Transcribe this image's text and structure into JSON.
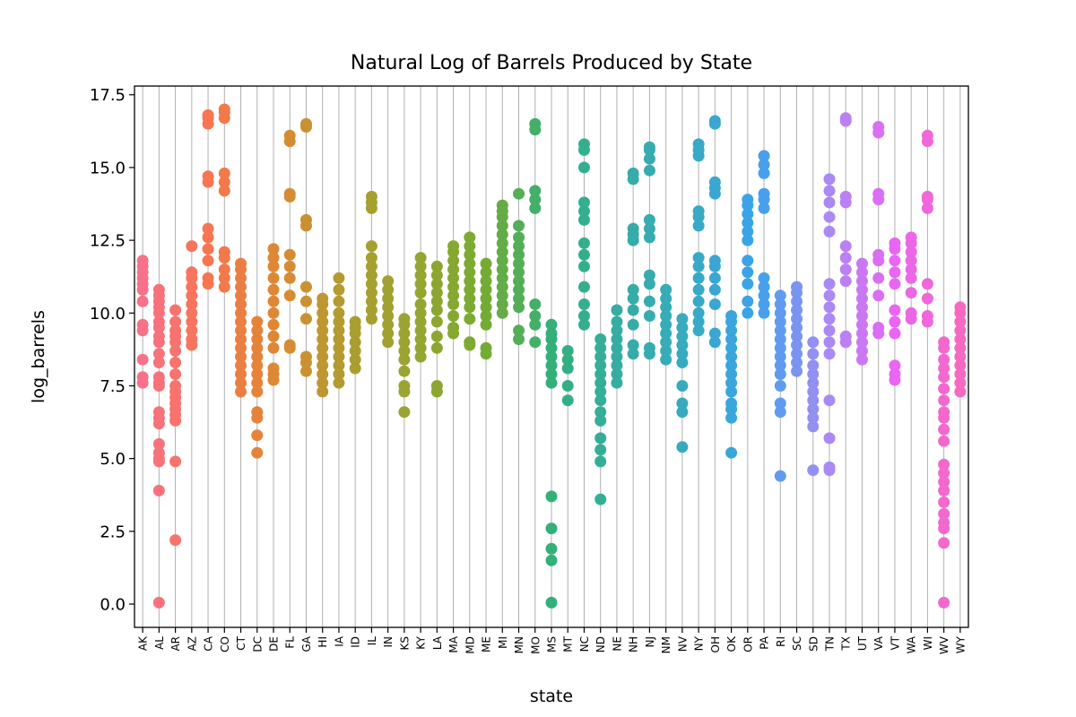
{
  "chart_data": {
    "type": "scatter",
    "subtype": "strip",
    "title": "Natural Log of Barrels Produced by State",
    "xlabel": "state",
    "ylabel": "log_barrels",
    "ylim": [
      -0.8,
      17.8
    ],
    "yticks": [
      "0.0",
      "2.5",
      "5.0",
      "7.5",
      "10.0",
      "12.5",
      "15.0",
      "17.5"
    ],
    "grid": "vertical lines at each category",
    "legend": "none",
    "categories": [
      "AK",
      "AL",
      "AR",
      "AZ",
      "CA",
      "CO",
      "CT",
      "DC",
      "DE",
      "FL",
      "GA",
      "HI",
      "IA",
      "ID",
      "IL",
      "IN",
      "KS",
      "KY",
      "LA",
      "MA",
      "MD",
      "ME",
      "MI",
      "MN",
      "MO",
      "MS",
      "MT",
      "NC",
      "ND",
      "NE",
      "NH",
      "NJ",
      "NM",
      "NV",
      "NY",
      "OH",
      "OK",
      "OR",
      "PA",
      "RI",
      "SC",
      "SD",
      "TN",
      "TX",
      "UT",
      "VA",
      "VT",
      "WA",
      "WI",
      "WV",
      "WY"
    ],
    "colors": [
      "#f77189",
      "#f7754f",
      "#dc8932",
      "#ae9d31",
      "#97a431",
      "#77ab31",
      "#33b07a",
      "#36ada4",
      "#38aabf",
      "#3ba3ec",
      "#a48cf4",
      "#e866f4",
      "#f668c2"
    ],
    "points": {
      "AK": [
        7.6,
        7.8,
        8.4,
        9.4,
        9.6,
        10.4,
        10.8,
        11.0,
        11.2,
        11.4,
        11.6,
        11.8
      ],
      "AL": [
        0.05,
        3.9,
        4.9,
        5.0,
        5.2,
        5.5,
        6.2,
        6.4,
        6.6,
        7.5,
        7.6,
        7.8,
        8.3,
        8.6,
        9.0,
        9.2,
        9.5,
        9.7,
        10.0,
        10.2,
        10.4,
        10.6,
        10.8
      ],
      "AR": [
        2.2,
        4.9,
        6.3,
        6.5,
        6.7,
        6.9,
        7.1,
        7.3,
        7.5,
        7.9,
        8.3,
        8.7,
        9.0,
        9.2,
        9.4,
        9.7,
        10.1
      ],
      "AZ": [
        8.9,
        9.1,
        9.4,
        9.7,
        10.0,
        10.3,
        10.6,
        10.9,
        11.2,
        11.4,
        12.3
      ],
      "CA": [
        11.0,
        11.2,
        11.8,
        12.2,
        12.6,
        12.9,
        14.5,
        14.7,
        16.5,
        16.7,
        16.8
      ],
      "CO": [
        10.9,
        11.2,
        11.5,
        11.9,
        12.1,
        14.2,
        14.5,
        14.8,
        16.7,
        16.9,
        17.0
      ],
      "CT": [
        7.3,
        7.6,
        7.9,
        8.2,
        8.5,
        8.8,
        9.1,
        9.4,
        9.7,
        10.0,
        10.3,
        10.6,
        10.9,
        11.2,
        11.5,
        11.7
      ],
      "DC": [
        5.2,
        5.8,
        6.4,
        6.6,
        7.3,
        7.6,
        7.9,
        8.2,
        8.5,
        8.8,
        9.1,
        9.4,
        9.7
      ],
      "DE": [
        7.7,
        7.9,
        8.1,
        8.8,
        9.2,
        9.6,
        10.0,
        10.4,
        10.8,
        11.2,
        11.6,
        11.9,
        12.2
      ],
      "FL": [
        8.8,
        8.9,
        10.6,
        11.2,
        11.6,
        12.0,
        14.0,
        14.1,
        15.9,
        16.1
      ],
      "GA": [
        8.0,
        8.3,
        8.5,
        9.8,
        10.4,
        10.9,
        13.0,
        13.2,
        16.4,
        16.5
      ],
      "HI": [
        7.3,
        7.6,
        7.9,
        8.2,
        8.5,
        8.8,
        9.1,
        9.4,
        9.7,
        10.0,
        10.3,
        10.5
      ],
      "IA": [
        7.6,
        7.9,
        8.2,
        8.5,
        8.8,
        9.1,
        9.4,
        9.7,
        10.0,
        10.4,
        10.8,
        11.2
      ],
      "ID": [
        8.1,
        8.4,
        8.7,
        9.0,
        9.3,
        9.5,
        9.7
      ],
      "IL": [
        9.8,
        10.1,
        10.4,
        10.7,
        11.0,
        11.3,
        11.6,
        11.9,
        12.3,
        13.6,
        13.8,
        14.0
      ],
      "IN": [
        9.0,
        9.3,
        9.6,
        9.9,
        10.2,
        10.5,
        10.8,
        11.1
      ],
      "KS": [
        6.6,
        7.3,
        7.5,
        8.0,
        8.4,
        8.7,
        9.0,
        9.3,
        9.6,
        9.8
      ],
      "KY": [
        8.5,
        8.8,
        9.1,
        9.4,
        9.7,
        10.0,
        10.3,
        10.7,
        11.0,
        11.3,
        11.6,
        11.9
      ],
      "LA": [
        7.3,
        7.5,
        8.8,
        9.2,
        9.7,
        10.1,
        10.4,
        10.7,
        11.0,
        11.3,
        11.6
      ],
      "MA": [
        9.3,
        9.5,
        9.9,
        10.3,
        10.6,
        10.9,
        11.2,
        11.5,
        11.8,
        12.1,
        12.3
      ],
      "MD": [
        8.9,
        9.0,
        9.8,
        10.2,
        10.5,
        10.8,
        11.1,
        11.4,
        11.7,
        12.0,
        12.3,
        12.6
      ],
      "ME": [
        8.6,
        8.8,
        9.6,
        9.9,
        10.2,
        10.5,
        10.8,
        11.1,
        11.4,
        11.7
      ],
      "MI": [
        10.0,
        10.3,
        10.6,
        10.9,
        11.2,
        11.5,
        11.8,
        12.1,
        12.4,
        12.7,
        13.0,
        13.3,
        13.5,
        13.7
      ],
      "MN": [
        9.1,
        9.4,
        10.2,
        10.5,
        10.8,
        11.1,
        11.4,
        11.7,
        12.0,
        12.3,
        12.6,
        13.0,
        14.1
      ],
      "MO": [
        9.0,
        9.6,
        9.9,
        10.3,
        13.6,
        13.9,
        14.2,
        16.3,
        16.5
      ],
      "MS": [
        0.05,
        1.5,
        1.9,
        2.6,
        3.7,
        7.6,
        7.9,
        8.2,
        8.5,
        8.8,
        9.1,
        9.3,
        9.6
      ],
      "MT": [
        7.0,
        7.5,
        8.1,
        8.4,
        8.7
      ],
      "NC": [
        9.6,
        9.9,
        10.3,
        10.9,
        11.6,
        12.0,
        12.4,
        13.2,
        13.5,
        13.8,
        15.0,
        15.6,
        15.8
      ],
      "ND": [
        3.6,
        4.9,
        5.3,
        5.7,
        6.3,
        6.6,
        7.0,
        7.3,
        7.6,
        7.9,
        8.2,
        8.5,
        8.8,
        9.1
      ],
      "NE": [
        7.6,
        7.9,
        8.2,
        8.5,
        8.8,
        9.1,
        9.4,
        9.7,
        10.1
      ],
      "NH": [
        8.6,
        8.9,
        9.6,
        10.1,
        10.5,
        10.8,
        12.5,
        12.7,
        12.9,
        14.6,
        14.8
      ],
      "NJ": [
        8.6,
        8.8,
        9.9,
        10.4,
        11.0,
        11.3,
        12.6,
        12.9,
        13.2,
        14.9,
        15.3,
        15.6,
        15.7
      ],
      "NM": [
        8.4,
        8.7,
        9.0,
        9.3,
        9.6,
        9.9,
        10.2,
        10.5,
        10.8
      ],
      "NV": [
        5.4,
        6.6,
        6.9,
        7.5,
        8.3,
        8.6,
        8.9,
        9.2,
        9.5,
        9.8
      ],
      "NY": [
        9.4,
        9.7,
        10.0,
        10.4,
        10.8,
        11.2,
        11.6,
        11.9,
        13.0,
        13.3,
        13.5,
        15.4,
        15.6,
        15.8
      ],
      "OH": [
        9.0,
        9.3,
        10.3,
        10.8,
        11.2,
        11.6,
        11.8,
        14.1,
        14.3,
        14.5,
        16.5,
        16.6
      ],
      "OK": [
        5.2,
        6.4,
        6.7,
        6.9,
        7.3,
        7.6,
        7.9,
        8.2,
        8.5,
        8.8,
        9.1,
        9.4,
        9.7,
        9.9
      ],
      "OR": [
        10.0,
        10.4,
        11.0,
        11.4,
        11.8,
        12.5,
        12.8,
        13.1,
        13.4,
        13.7,
        13.9
      ],
      "PA": [
        10.0,
        10.3,
        10.6,
        10.9,
        11.2,
        13.6,
        13.9,
        14.1,
        14.8,
        15.1,
        15.4
      ],
      "RI": [
        4.4,
        6.6,
        6.9,
        7.5,
        7.9,
        8.2,
        8.5,
        8.8,
        9.1,
        9.4,
        9.7,
        10.0,
        10.3,
        10.6
      ],
      "SC": [
        8.0,
        8.3,
        8.6,
        8.9,
        9.2,
        9.5,
        9.8,
        10.1,
        10.4,
        10.7,
        10.9
      ],
      "SD": [
        4.6,
        6.1,
        6.4,
        6.7,
        7.0,
        7.3,
        7.6,
        7.9,
        8.2,
        8.6,
        9.0
      ],
      "TN": [
        4.6,
        4.7,
        5.7,
        7.0,
        8.6,
        9.0,
        9.4,
        9.8,
        10.2,
        10.6,
        11.0,
        12.8,
        13.3,
        13.8,
        14.2,
        14.6
      ],
      "TX": [
        9.0,
        9.2,
        11.1,
        11.5,
        11.9,
        12.3,
        13.8,
        14.0,
        16.6,
        16.7
      ],
      "UT": [
        8.4,
        8.7,
        9.0,
        9.3,
        9.6,
        9.9,
        10.2,
        10.5,
        10.8,
        11.1,
        11.4,
        11.7
      ],
      "VA": [
        9.3,
        9.5,
        10.6,
        11.2,
        11.8,
        12.0,
        13.9,
        14.1,
        16.2,
        16.4
      ],
      "VT": [
        7.7,
        7.9,
        8.2,
        9.3,
        9.7,
        10.1,
        11.0,
        11.4,
        11.8,
        12.2,
        12.4
      ],
      "WA": [
        9.8,
        10.0,
        10.7,
        11.2,
        11.5,
        11.8,
        12.1,
        12.4,
        12.6
      ],
      "WI": [
        9.7,
        9.9,
        10.5,
        11.0,
        13.6,
        13.9,
        14.0,
        15.9,
        16.1
      ],
      "WV": [
        0.05,
        2.1,
        2.6,
        2.8,
        3.1,
        3.5,
        3.9,
        4.2,
        4.5,
        4.8,
        5.6,
        6.0,
        6.4,
        6.6,
        7.0,
        7.4,
        7.8,
        8.1,
        8.4,
        8.8,
        9.0
      ],
      "WY": [
        7.3,
        7.6,
        7.9,
        8.2,
        8.5,
        8.8,
        9.1,
        9.4,
        9.7,
        10.0,
        10.2
      ]
    }
  }
}
